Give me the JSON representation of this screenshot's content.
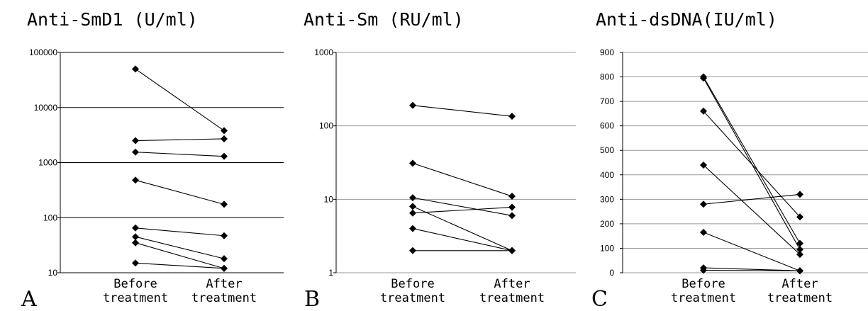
{
  "chart_data": [
    {
      "type": "line",
      "panel": "A",
      "title": "Anti-SmD1 (U/ml)",
      "scale": "log",
      "ylim": [
        10,
        100000
      ],
      "yticks": [
        "10",
        "100",
        "1000",
        "10000",
        "100000"
      ],
      "tick_values": [
        10,
        100,
        1000,
        10000,
        100000
      ],
      "grid": "major, black",
      "categories": [
        [
          "Before",
          "treatment"
        ],
        [
          "After",
          "treatment"
        ]
      ],
      "pairs": [
        [
          50000,
          3800
        ],
        [
          2500,
          2700
        ],
        [
          1550,
          1300
        ],
        [
          480,
          175
        ],
        [
          65,
          47
        ],
        [
          45,
          18
        ],
        [
          35,
          12
        ],
        [
          15,
          12
        ]
      ]
    },
    {
      "type": "line",
      "panel": "B",
      "title": "Anti-Sm (RU/ml)",
      "scale": "log",
      "ylim": [
        1,
        1000
      ],
      "yticks": [
        "1",
        "10",
        "100",
        "1000"
      ],
      "tick_values": [
        1,
        10,
        100,
        1000
      ],
      "grid": "major, gray",
      "categories": [
        [
          "Before",
          "treatment"
        ],
        [
          "After",
          "treatment"
        ]
      ],
      "pairs": [
        [
          190,
          135
        ],
        [
          31,
          11
        ],
        [
          10.5,
          6
        ],
        [
          8,
          2
        ],
        [
          6.5,
          7.8
        ],
        [
          4,
          2
        ],
        [
          2,
          2
        ]
      ]
    },
    {
      "type": "line",
      "panel": "C",
      "title": "Anti-dsDNA(IU/ml)",
      "scale": "linear",
      "ylim": [
        0,
        900
      ],
      "yticks": [
        "0",
        "100",
        "200",
        "300",
        "400",
        "500",
        "600",
        "700",
        "800",
        "900"
      ],
      "tick_values": [
        0,
        100,
        200,
        300,
        400,
        500,
        600,
        700,
        800,
        900
      ],
      "grid": "major, gray",
      "categories": [
        [
          "Before",
          "treatment"
        ],
        [
          "After",
          "treatment"
        ]
      ],
      "pairs": [
        [
          800,
          120
        ],
        [
          795,
          95
        ],
        [
          660,
          228
        ],
        [
          440,
          75
        ],
        [
          280,
          320
        ],
        [
          165,
          8
        ],
        [
          20,
          8
        ],
        [
          10,
          8
        ]
      ]
    }
  ],
  "colors": {
    "grid_black": "#000000",
    "grid_gray": "#999999",
    "marker": "#000000"
  }
}
